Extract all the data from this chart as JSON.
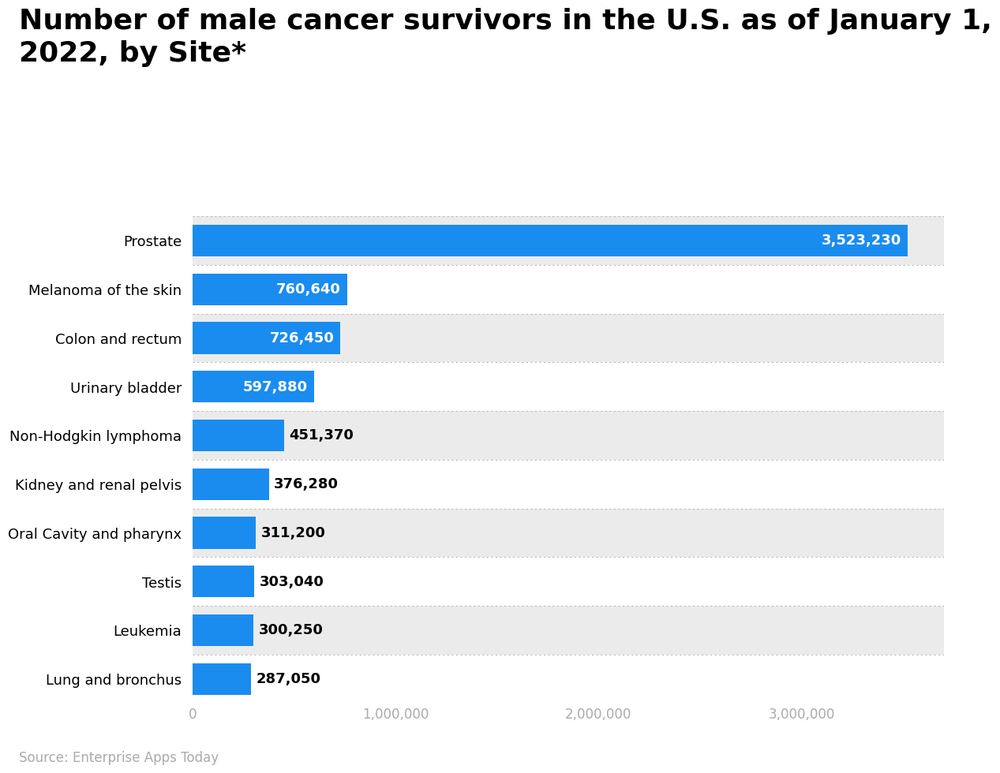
{
  "title": "Number of male cancer survivors in the U.S. as of January 1,\n2022, by Site*",
  "categories": [
    "Lung and bronchus",
    "Leukemia",
    "Testis",
    "Oral Cavity and pharynx",
    "Kidney and renal pelvis",
    "Non-Hodgkin lymphoma",
    "Urinary bladder",
    "Colon and rectum",
    "Melanoma of the skin",
    "Prostate"
  ],
  "values": [
    287050,
    300250,
    303040,
    311200,
    376280,
    451370,
    597880,
    726450,
    760640,
    3523230
  ],
  "bar_color": "#1a8cf0",
  "label_inside_color": "#ffffff",
  "label_outside_color": "#000000",
  "inside_threshold": 500000,
  "background_color": "#ffffff",
  "row_colors": [
    "#ebebeb",
    "#ffffff"
  ],
  "source_text": "Source: Enterprise Apps Today",
  "xlim": [
    0,
    3700000
  ],
  "xticks": [
    0,
    1000000,
    2000000,
    3000000
  ],
  "xtick_labels": [
    "0",
    "1,000,000",
    "2,000,000",
    "3,000,000"
  ],
  "title_fontsize": 26,
  "label_fontsize": 13,
  "tick_label_fontsize": 12,
  "source_fontsize": 12,
  "bar_height": 0.65
}
